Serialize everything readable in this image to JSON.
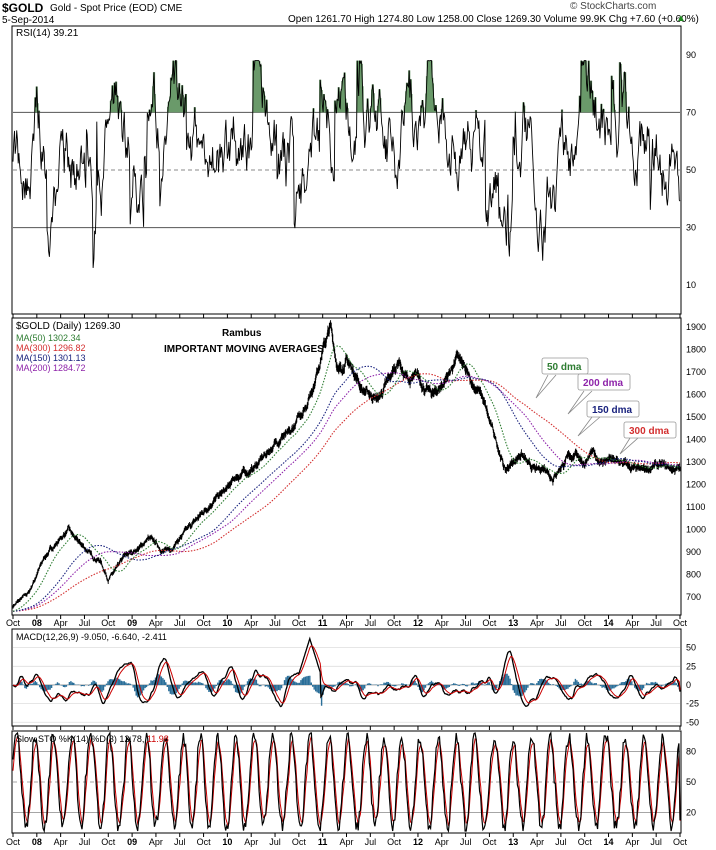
{
  "header": {
    "ticker": "$GOLD",
    "description": "Gold - Spot Price (EOD) CME",
    "date": "5-Sep-2014",
    "quote": "Open 1261.70 High 1274.80 Low 1258.00 Close 1269.30 Volume 99.9K Chg +7.60 (+0.60%)",
    "quote_arrow": "▲",
    "brand": "© StockCharts.com"
  },
  "panels": {
    "rsi": {
      "label": "RSI(14) 39.21"
    },
    "price": {
      "label": "$GOLD (Daily) 1269.30",
      "legend": [
        {
          "text": "MA(50) 1302.34",
          "color": "#2e7d32"
        },
        {
          "text": "MA(300) 1296.82",
          "color": "#d32f2f"
        },
        {
          "text": "MA(150) 1301.13",
          "color": "#1a237e"
        },
        {
          "text": "MA(200) 1284.72",
          "color": "#8e24aa"
        }
      ],
      "author": "Rambus",
      "subtitle": "IMPORTANT MOVING AVERAGES"
    },
    "macd": {
      "label": "MACD(12,26,9) -9.050, -6.640, -2.411"
    },
    "sto": {
      "label_a": "Slow STO %K(14) %D(3) 12.78, ",
      "label_b": "11.98"
    }
  },
  "colors": {
    "ma50": "#2e7d32",
    "ma150": "#1a237e",
    "ma200": "#8e24aa",
    "ma300": "#d32f2f",
    "rsi_fill": "#6a9a6a",
    "macd_hist": "#2b6f99",
    "signal": "#cc0000"
  },
  "chart_data": [
    {
      "type": "line",
      "title": "RSI(14) 39.21",
      "ylim": [
        0,
        100
      ],
      "yticks": [
        10,
        30,
        50,
        70,
        90
      ],
      "reference_lines": [
        30,
        50,
        70
      ],
      "x_ticks": [
        "Oct",
        "08",
        "Apr",
        "Jul",
        "Oct",
        "09",
        "Apr",
        "Jul",
        "Oct",
        "10",
        "Apr",
        "Jul",
        "Oct",
        "11",
        "Apr",
        "Jul",
        "Oct",
        "12",
        "Apr",
        "Jul",
        "Oct",
        "13",
        "Apr",
        "Jul",
        "Oct",
        "14",
        "Apr",
        "Jul",
        "Oct"
      ],
      "series": [
        {
          "name": "RSI(14)",
          "last": 39.21,
          "min": 16,
          "max": 88
        }
      ]
    },
    {
      "type": "line",
      "title": "$GOLD (Daily) 1269.30",
      "subtitle": "IMPORTANT MOVING AVERAGES",
      "ylim": [
        620,
        1940
      ],
      "yticks": [
        700,
        800,
        900,
        1000,
        1100,
        1200,
        1300,
        1400,
        1500,
        1600,
        1700,
        1800,
        1900
      ],
      "x_ticks": [
        "Oct",
        "08",
        "Apr",
        "Jul",
        "Oct",
        "09",
        "Apr",
        "Jul",
        "Oct",
        "10",
        "Apr",
        "Jul",
        "Oct",
        "11",
        "Apr",
        "Jul",
        "Oct",
        "12",
        "Apr",
        "Jul",
        "Oct",
        "13",
        "Apr",
        "Jul",
        "Oct",
        "14",
        "Apr",
        "Jul",
        "Oct"
      ],
      "x_range_months": [
        0,
        84
      ],
      "series": [
        {
          "name": "$GOLD",
          "months": [
            0,
            2,
            3,
            4,
            5,
            6,
            7,
            8,
            9,
            10,
            11,
            12,
            13,
            14,
            16,
            17,
            18,
            19,
            20,
            21,
            22,
            23,
            24,
            25,
            26,
            27,
            28,
            29,
            30,
            31,
            32,
            33,
            34,
            35,
            36,
            37,
            38,
            39,
            40,
            41,
            42,
            43,
            44,
            45,
            46,
            47,
            48,
            48.7,
            49,
            50,
            51,
            52,
            53,
            54,
            55,
            56,
            57,
            58,
            59,
            60,
            61,
            62,
            63,
            64,
            65,
            66,
            67,
            68,
            69,
            70,
            71,
            72,
            73,
            74,
            75,
            76,
            77,
            78,
            79,
            80,
            81,
            82,
            83
          ],
          "values": [
            660,
            720,
            800,
            880,
            920,
            960,
            1000,
            950,
            920,
            880,
            860,
            780,
            820,
            880,
            920,
            960,
            940,
            900,
            920,
            960,
            1000,
            1040,
            1080,
            1120,
            1150,
            1180,
            1230,
            1250,
            1260,
            1300,
            1340,
            1380,
            1420,
            1420,
            1500,
            1560,
            1660,
            1800,
            1900,
            1700,
            1750,
            1700,
            1620,
            1600,
            1580,
            1640,
            1710,
            1760,
            1700,
            1660,
            1680,
            1620,
            1600,
            1640,
            1700,
            1770,
            1700,
            1640,
            1600,
            1480,
            1380,
            1260,
            1300,
            1340,
            1280,
            1260,
            1280,
            1230,
            1280,
            1320,
            1340,
            1290,
            1340,
            1300,
            1310,
            1300,
            1290,
            1270,
            1260,
            1270,
            1285,
            1280,
            1269
          ]
        },
        {
          "name": "MA(50)",
          "last": 1302.34,
          "annotation": "50 dma"
        },
        {
          "name": "MA(150)",
          "last": 1301.13,
          "annotation": "150 dma"
        },
        {
          "name": "MA(200)",
          "last": 1284.72,
          "annotation": "200 dma"
        },
        {
          "name": "MA(300)",
          "last": 1296.82,
          "annotation": "300 dma"
        }
      ]
    },
    {
      "type": "line",
      "title": "MACD(12,26,9) -9.050, -6.640, -2.411",
      "ylim": [
        -55,
        75
      ],
      "yticks": [
        -50,
        -25,
        0,
        25,
        50
      ],
      "series": [
        {
          "name": "MACD",
          "last": -9.05
        },
        {
          "name": "Signal",
          "last": -6.64
        },
        {
          "name": "Histogram",
          "last": -2.411
        }
      ]
    },
    {
      "type": "line",
      "title": "Slow STO %K(14) %D(3) 12.78, 11.98",
      "ylim": [
        0,
        100
      ],
      "yticks": [
        20,
        50,
        80
      ],
      "series": [
        {
          "name": "%K(14)",
          "last": 12.78
        },
        {
          "name": "%D(3)",
          "last": 11.98
        }
      ]
    }
  ]
}
